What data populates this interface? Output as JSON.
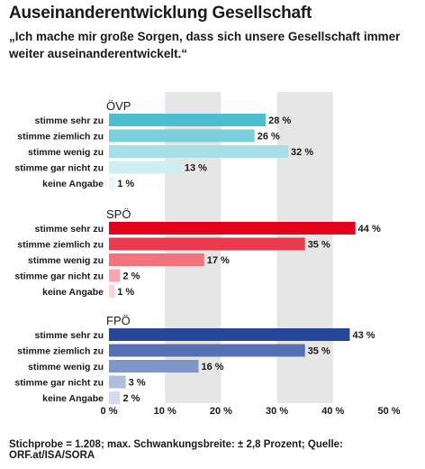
{
  "title": "Auseinanderentwicklung Gesellschaft",
  "subtitle": "„Ich mache mir große Sorgen, dass sich unsere Gesellschaft immer weiter auseinanderentwickelt.“",
  "footer": "Stichprobe = 1.208; max. Schwankungsbreite: ± 2,8 Prozent; Quelle: ORF.at/ISA/SORA",
  "chart_data": {
    "type": "bar",
    "orientation": "horizontal",
    "title": "Auseinanderentwicklung Gesellschaft",
    "categories": [
      "stimme sehr zu",
      "stimme ziemlich zu",
      "stimme wenig zu",
      "stimme gar nicht zu",
      "keine Angabe"
    ],
    "xlim": [
      0,
      50
    ],
    "x_ticks": [
      "0 %",
      "10 %",
      "20 %",
      "30 %",
      "40 %",
      "50 %"
    ],
    "grid": "alternating vertical bands",
    "groups": [
      {
        "name": "ÖVP",
        "values": [
          28,
          26,
          32,
          13,
          1
        ],
        "labels": [
          "28 %",
          "26 %",
          "32 %",
          "13 %",
          "1 %"
        ],
        "colors": [
          "#4bbfcf",
          "#79cfdb",
          "#a7dfe7",
          "#cfeef3",
          "#e8f7f9"
        ]
      },
      {
        "name": "SPÖ",
        "values": [
          44,
          35,
          17,
          2,
          1
        ],
        "labels": [
          "44 %",
          "35 %",
          "17 %",
          "2 %",
          "1 %"
        ],
        "colors": [
          "#e2001a",
          "#ea3a4e",
          "#f2727f",
          "#f7a6ae",
          "#fbd3d7"
        ]
      },
      {
        "name": "FPÖ",
        "values": [
          43,
          35,
          16,
          3,
          2
        ],
        "labels": [
          "43 %",
          "35 %",
          "16 %",
          "3 %",
          "2 %"
        ],
        "colors": [
          "#26469a",
          "#5570b3",
          "#8096c9",
          "#b0bede",
          "#d3dbec"
        ]
      }
    ]
  }
}
